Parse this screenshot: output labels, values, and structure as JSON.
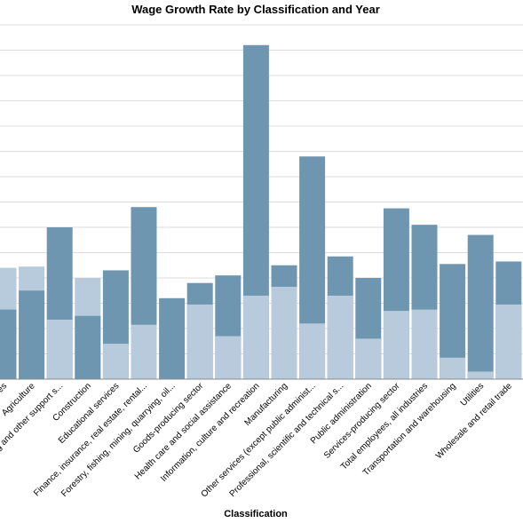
{
  "chart_data": {
    "type": "bar",
    "stacked": false,
    "title": "Wage Growth Rate by Classification and Year",
    "xlabel": "Classification",
    "ylabel": "",
    "ylim": [
      0,
      14
    ],
    "grid": true,
    "colors": {
      "dark": "#6f96b0",
      "light": "#b7cbdc"
    },
    "categories": [
      "Accommodation and food services",
      "Agriculture",
      "Administrative and support, waste management and remediation services",
      "Construction",
      "Educational services",
      "Finance, insurance, real estate, rental and leasing",
      "Forestry, fishing, mining, quarrying, oil and gas",
      "Goods-producing sector",
      "Health care and social assistance",
      "Information, culture and recreation",
      "Manufacturing",
      "Other services (except public administration)",
      "Professional, scientific and technical services",
      "Public administration",
      "Services-producing sector",
      "Total employees, all industries",
      "Transportation and warehousing",
      "Utilities",
      "Wholesale and retail trade"
    ],
    "tick_labels": [
      "es",
      "Agriculture",
      "g and other support s...",
      "Construction",
      "Educational services",
      "Finance, insurance, real estate, rental...",
      "Forestry, fishing, mining, quarrying, oil...",
      "Goods-producing sector",
      "Health care and social assistance",
      "Information, culture and recreation",
      "Manufacturing",
      "Other services (except public administ...",
      "Professional, scientific and technical s...",
      "Public administration",
      "Services-producing sector",
      "Total employees, all industries",
      "Transportation and warehousing",
      "Utilities",
      "Wholesale and retail trade"
    ],
    "series": [
      {
        "values": [
          2.75,
          3.5,
          6.0,
          2.5,
          4.3,
          6.8,
          3.2,
          3.8,
          4.1,
          13.2,
          4.5,
          8.8,
          4.85,
          4.0,
          6.75,
          6.1,
          4.55,
          5.7,
          4.65
        ]
      },
      {
        "values": [
          4.4,
          4.45,
          2.35,
          4.0,
          1.4,
          2.15,
          0,
          2.95,
          1.7,
          3.3,
          3.65,
          2.2,
          3.3,
          1.6,
          2.7,
          2.75,
          0.85,
          0.3,
          2.95
        ]
      }
    ]
  }
}
